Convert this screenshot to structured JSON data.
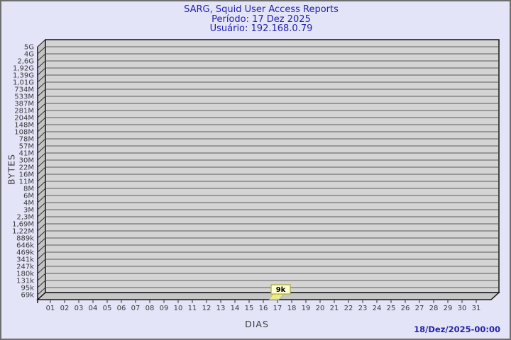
{
  "window": {
    "background": "#e4e4f8",
    "border_color": "#6e6e6e"
  },
  "header": {
    "title": "SARG, Squid User Access Reports",
    "period_line": "Período: 17 Dez 2025",
    "user_line": "Usuário: 192.168.0.79",
    "text_color": "#2323ad"
  },
  "footer": {
    "generated_timestamp": "18/Dez/2025-00:00"
  },
  "chart_data": {
    "type": "bar",
    "title": "SARG, Squid User Access Reports",
    "subtitle_period": "Período: 17 Dez 2025",
    "subtitle_user": "Usuário: 192.168.0.79",
    "xlabel": "DIAS",
    "ylabel": "BYTES",
    "x_categories": [
      "01",
      "02",
      "03",
      "04",
      "05",
      "06",
      "07",
      "08",
      "09",
      "10",
      "11",
      "12",
      "13",
      "14",
      "15",
      "16",
      "17",
      "18",
      "19",
      "20",
      "21",
      "22",
      "23",
      "24",
      "25",
      "26",
      "27",
      "28",
      "29",
      "30",
      "31"
    ],
    "y_tick_labels_top_to_bottom": [
      "5G",
      "4G",
      "2,6G",
      "1,92G",
      "1,39G",
      "1,01G",
      "734M",
      "533M",
      "387M",
      "281M",
      "204M",
      "148M",
      "108M",
      "78M",
      "57M",
      "41M",
      "30M",
      "22M",
      "16M",
      "11M",
      "8M",
      "6M",
      "4M",
      "3M",
      "2,3M",
      "1,69M",
      "1,22M",
      "889k",
      "646k",
      "469k",
      "341k",
      "247k",
      "180k",
      "131k",
      "95k",
      "69k"
    ],
    "y_scale": "logarithmic",
    "y_range_labels": [
      "69k",
      "5G"
    ],
    "grid": true,
    "legend": false,
    "projection": "pseudo-3d",
    "bars": [
      {
        "day": "17",
        "value_label": "9k"
      }
    ],
    "colors": {
      "wall": "#d4d4d4",
      "side": "#c4c4c4",
      "floor": "#c6c6c6",
      "grid": "#5c5c5c",
      "outline": "#141414",
      "connector": "#333333",
      "tick_text": "#3a3a3a",
      "bar": "#efe98e",
      "bar_edge": "#b0a840",
      "annotation_bg": "#ffffcc",
      "annotation_border": "#a8a838",
      "annotation_text": "#000000"
    }
  }
}
